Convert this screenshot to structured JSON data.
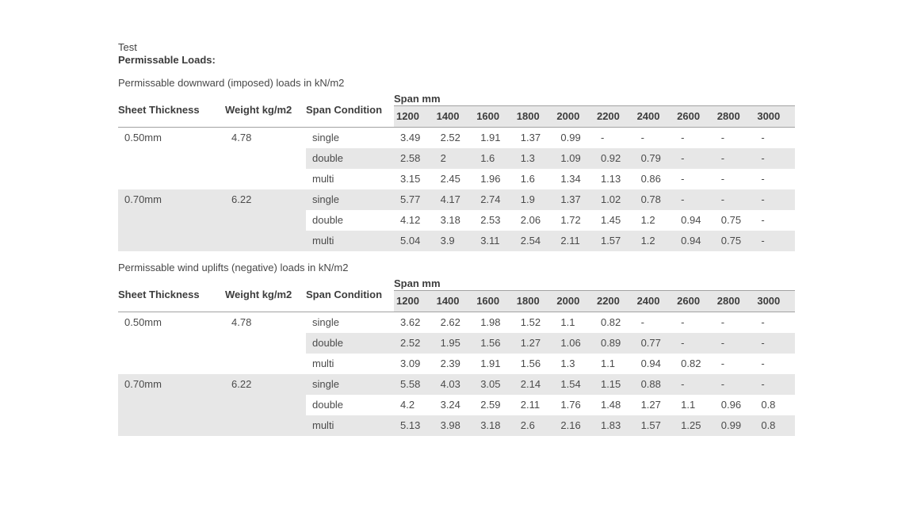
{
  "header": {
    "small": "Test",
    "bold": "Permissable Loads:"
  },
  "columns": {
    "sheet_thickness": "Sheet Thickness",
    "weight": "Weight kg/m2",
    "span_condition": "Span Condition",
    "span_group": "Span mm"
  },
  "spans": [
    "1200",
    "1400",
    "1600",
    "1800",
    "2000",
    "2200",
    "2400",
    "2600",
    "2800",
    "3000"
  ],
  "colors": {
    "stripe": "#e7e7e7",
    "border": "#a2a2a2",
    "header_text": "#3d3d3d",
    "body_text": "#4b4b4b",
    "dash_text": "#8f8f8f"
  },
  "tables": [
    {
      "title": "Permissable downward (imposed) loads in kN/m2",
      "groups": [
        {
          "sheet_thickness": "0.50mm",
          "weight": "4.78",
          "rows": [
            {
              "condition": "single",
              "values": [
                "3.49",
                "2.52",
                "1.91",
                "1.37",
                "0.99",
                "-",
                "-",
                "-",
                "-",
                "-"
              ]
            },
            {
              "condition": "double",
              "values": [
                "2.58",
                "2",
                "1.6",
                "1.3",
                "1.09",
                "0.92",
                "0.79",
                "-",
                "-",
                "-"
              ]
            },
            {
              "condition": "multi",
              "values": [
                "3.15",
                "2.45",
                "1.96",
                "1.6",
                "1.34",
                "1.13",
                "0.86",
                "-",
                "-",
                "-"
              ]
            }
          ]
        },
        {
          "sheet_thickness": "0.70mm",
          "weight": "6.22",
          "rows": [
            {
              "condition": "single",
              "values": [
                "5.77",
                "4.17",
                "2.74",
                "1.9",
                "1.37",
                "1.02",
                "0.78",
                "-",
                "-",
                "-"
              ]
            },
            {
              "condition": "double",
              "values": [
                "4.12",
                "3.18",
                "2.53",
                "2.06",
                "1.72",
                "1.45",
                "1.2",
                "0.94",
                "0.75",
                "-"
              ]
            },
            {
              "condition": "multi",
              "values": [
                "5.04",
                "3.9",
                "3.11",
                "2.54",
                "2.11",
                "1.57",
                "1.2",
                "0.94",
                "0.75",
                "-"
              ]
            }
          ]
        }
      ]
    },
    {
      "title": "Permissable wind uplifts (negative) loads in kN/m2",
      "groups": [
        {
          "sheet_thickness": "0.50mm",
          "weight": "4.78",
          "rows": [
            {
              "condition": "single",
              "values": [
                "3.62",
                "2.62",
                "1.98",
                "1.52",
                "1.1",
                "0.82",
                "-",
                "-",
                "-",
                "-"
              ]
            },
            {
              "condition": "double",
              "values": [
                "2.52",
                "1.95",
                "1.56",
                "1.27",
                "1.06",
                "0.89",
                "0.77",
                "-",
                "-",
                "-"
              ]
            },
            {
              "condition": "multi",
              "values": [
                "3.09",
                "2.39",
                "1.91",
                "1.56",
                "1.3",
                "1.1",
                "0.94",
                "0.82",
                "-",
                "-"
              ]
            }
          ]
        },
        {
          "sheet_thickness": "0.70mm",
          "weight": "6.22",
          "rows": [
            {
              "condition": "single",
              "values": [
                "5.58",
                "4.03",
                "3.05",
                "2.14",
                "1.54",
                "1.15",
                "0.88",
                "-",
                "-",
                "-"
              ]
            },
            {
              "condition": "double",
              "values": [
                "4.2",
                "3.24",
                "2.59",
                "2.11",
                "1.76",
                "1.48",
                "1.27",
                "1.1",
                "0.96",
                "0.8"
              ]
            },
            {
              "condition": "multi",
              "values": [
                "5.13",
                "3.98",
                "3.18",
                "2.6",
                "2.16",
                "1.83",
                "1.57",
                "1.25",
                "0.99",
                "0.8"
              ]
            }
          ]
        }
      ]
    }
  ]
}
